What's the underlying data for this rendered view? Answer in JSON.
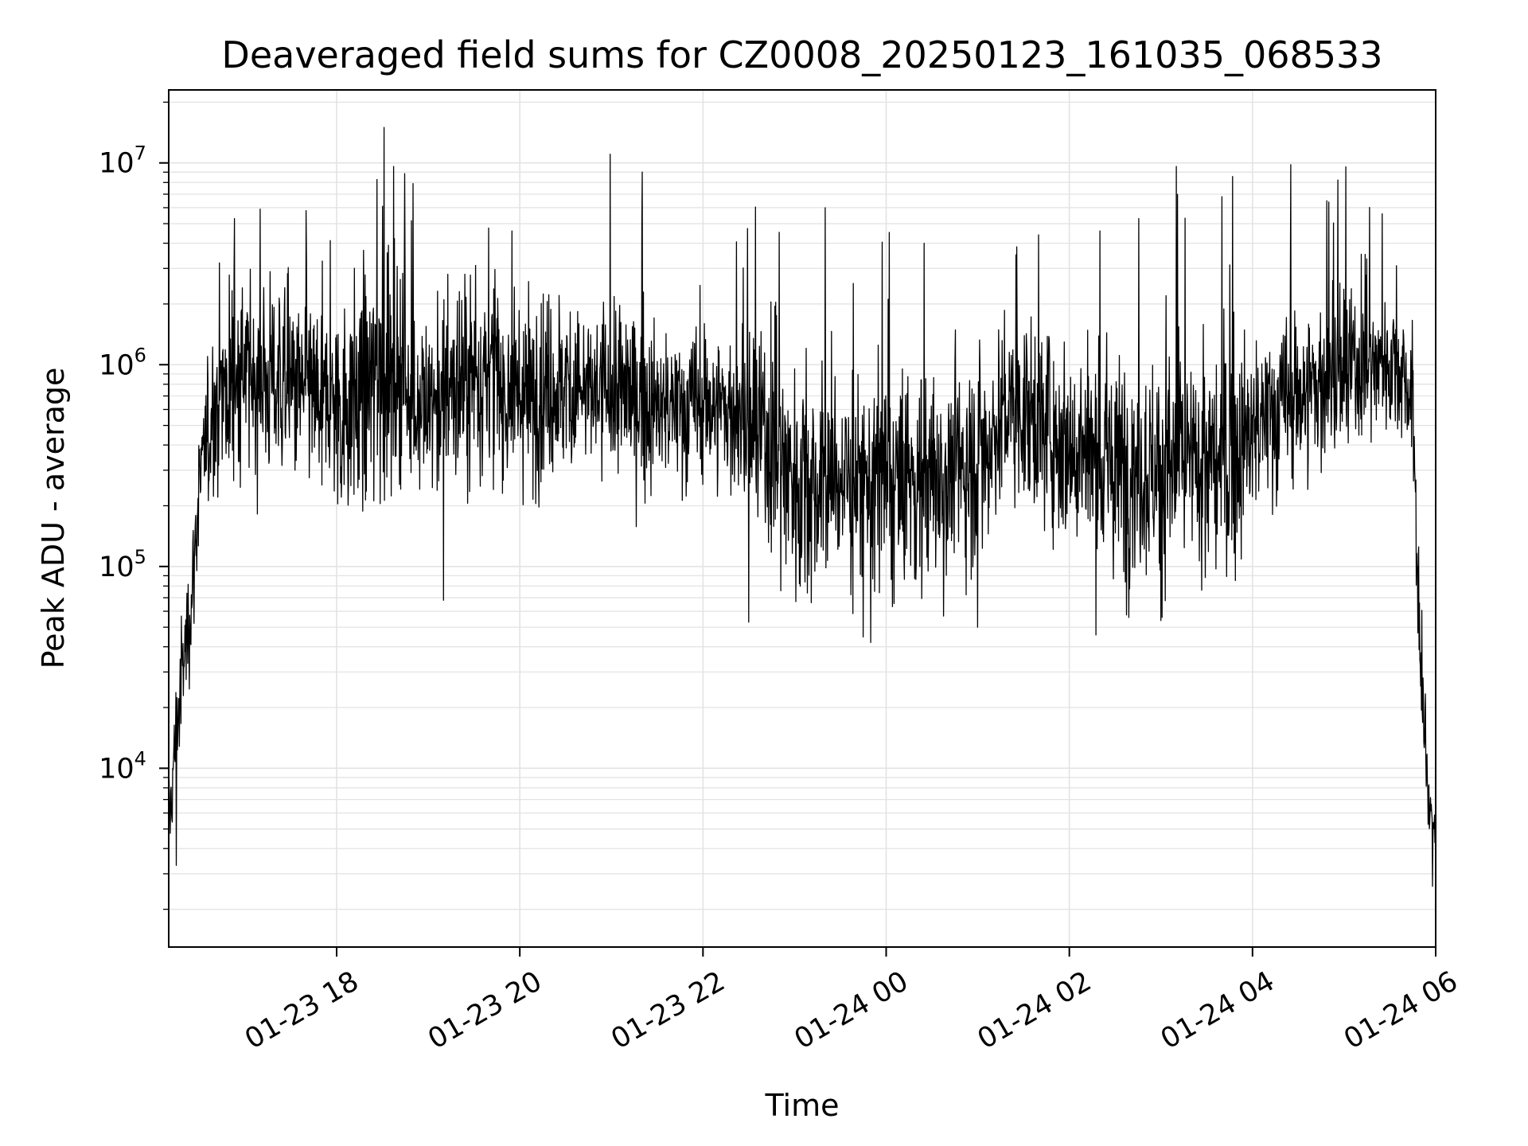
{
  "chart_data": {
    "type": "line",
    "title": "Deaveraged field sums for CZ0008_20250123_161035_068533",
    "xlabel": "Time",
    "ylabel": "Peak ADU - average",
    "yscale": "log",
    "ylim": [
      1300,
      23000000
    ],
    "xlim": [
      "2025-01-23 16:10",
      "2025-01-24 06:00"
    ],
    "grid": true,
    "line_color": "#000000",
    "grid_color": "#e3e3e3",
    "x_ticks": [
      {
        "t": "2025-01-23 18:00",
        "label": "01-23 18"
      },
      {
        "t": "2025-01-23 20:00",
        "label": "01-23 20"
      },
      {
        "t": "2025-01-23 22:00",
        "label": "01-23 22"
      },
      {
        "t": "2025-01-24 00:00",
        "label": "01-24 00"
      },
      {
        "t": "2025-01-24 02:00",
        "label": "01-24 02"
      },
      {
        "t": "2025-01-24 04:00",
        "label": "01-24 04"
      },
      {
        "t": "2025-01-24 06:00",
        "label": "01-24 06"
      }
    ],
    "y_ticks": [
      {
        "value": 10000,
        "base": "10",
        "exp": "4"
      },
      {
        "value": 100000,
        "base": "10",
        "exp": "5"
      },
      {
        "value": 1000000,
        "base": "10",
        "exp": "6"
      },
      {
        "value": 10000000,
        "base": "10",
        "exp": "7"
      }
    ],
    "series": [
      {
        "x": [
          "2025-01-23 16:10",
          "2025-01-23 16:15",
          "2025-01-23 16:20",
          "2025-01-23 16:25",
          "2025-01-23 16:30",
          "2025-01-23 16:40",
          "2025-01-23 16:50",
          "2025-01-23 17:00",
          "2025-01-23 17:15",
          "2025-01-23 17:30",
          "2025-01-23 17:45",
          "2025-01-23 18:00",
          "2025-01-23 18:15",
          "2025-01-23 18:30",
          "2025-01-23 18:45",
          "2025-01-23 19:00",
          "2025-01-23 19:15",
          "2025-01-23 19:30",
          "2025-01-23 19:45",
          "2025-01-23 20:00",
          "2025-01-23 20:15",
          "2025-01-23 20:30",
          "2025-01-23 20:45",
          "2025-01-23 21:00",
          "2025-01-23 21:15",
          "2025-01-23 21:30",
          "2025-01-23 21:45",
          "2025-01-23 22:00",
          "2025-01-23 22:15",
          "2025-01-23 22:30",
          "2025-01-23 22:45",
          "2025-01-23 23:00",
          "2025-01-23 23:15",
          "2025-01-23 23:30",
          "2025-01-23 23:45",
          "2025-01-24 00:00",
          "2025-01-24 00:15",
          "2025-01-24 00:30",
          "2025-01-24 00:45",
          "2025-01-24 01:00",
          "2025-01-24 01:15",
          "2025-01-24 01:30",
          "2025-01-24 01:45",
          "2025-01-24 02:00",
          "2025-01-24 02:15",
          "2025-01-24 02:30",
          "2025-01-24 02:45",
          "2025-01-24 03:00",
          "2025-01-24 03:15",
          "2025-01-24 03:30",
          "2025-01-24 03:45",
          "2025-01-24 04:00",
          "2025-01-24 04:15",
          "2025-01-24 04:30",
          "2025-01-24 04:45",
          "2025-01-24 05:00",
          "2025-01-24 05:15",
          "2025-01-24 05:30",
          "2025-01-24 05:40",
          "2025-01-24 05:45",
          "2025-01-24 05:50",
          "2025-01-24 05:55",
          "2025-01-24 06:00"
        ],
        "center": [
          5000,
          15000,
          35000,
          70000,
          250000,
          600000,
          800000,
          900000,
          850000,
          750000,
          700000,
          600000,
          700000,
          900000,
          800000,
          600000,
          750000,
          900000,
          800000,
          700000,
          750000,
          800000,
          700000,
          750000,
          700000,
          600000,
          600000,
          650000,
          600000,
          500000,
          400000,
          280000,
          250000,
          280000,
          260000,
          250000,
          260000,
          270000,
          300000,
          350000,
          550000,
          600000,
          500000,
          400000,
          350000,
          300000,
          320000,
          300000,
          320000,
          300000,
          350000,
          450000,
          600000,
          700000,
          800000,
          900000,
          1000000,
          1050000,
          900000,
          600000,
          30000,
          8000,
          5000
        ],
        "spread": [
          0.3,
          0.4,
          0.4,
          0.35,
          0.4,
          0.55,
          0.6,
          0.6,
          0.6,
          0.6,
          0.6,
          0.65,
          0.75,
          0.75,
          0.7,
          0.65,
          0.65,
          0.65,
          0.65,
          0.6,
          0.6,
          0.6,
          0.55,
          0.55,
          0.55,
          0.5,
          0.5,
          0.5,
          0.5,
          0.55,
          0.75,
          0.75,
          0.7,
          0.7,
          0.7,
          0.7,
          0.7,
          0.7,
          0.7,
          0.75,
          0.55,
          0.55,
          0.6,
          0.65,
          0.7,
          0.75,
          0.7,
          0.7,
          0.7,
          0.7,
          0.7,
          0.6,
          0.55,
          0.55,
          0.55,
          0.55,
          0.45,
          0.4,
          0.4,
          0.5,
          0.4,
          0.35,
          0.3
        ],
        "peaks": [
          {
            "t": "2025-01-23 16:53",
            "v": 5300000
          },
          {
            "t": "2025-01-23 17:10",
            "v": 5900000
          },
          {
            "t": "2025-01-23 17:40",
            "v": 5800000
          },
          {
            "t": "2025-01-23 18:30",
            "v": 6100000
          },
          {
            "t": "2025-01-23 18:31",
            "v": 15000000
          },
          {
            "t": "2025-01-23 18:50",
            "v": 7900000
          },
          {
            "t": "2025-01-23 19:55",
            "v": 4600000
          },
          {
            "t": "2025-01-23 21:20",
            "v": 4900000
          },
          {
            "t": "2025-01-23 23:20",
            "v": 6000000
          },
          {
            "t": "2025-01-24 00:25",
            "v": 4000000
          },
          {
            "t": "2025-01-24 01:25",
            "v": 3500000
          },
          {
            "t": "2025-01-24 02:20",
            "v": 4600000
          },
          {
            "t": "2025-01-24 03:10",
            "v": 9600000
          },
          {
            "t": "2025-01-24 03:40",
            "v": 6800000
          },
          {
            "t": "2025-01-24 04:25",
            "v": 9800000
          },
          {
            "t": "2025-01-24 04:50",
            "v": 6400000
          },
          {
            "t": "2025-01-24 05:25",
            "v": 5600000
          }
        ],
        "dips": [
          {
            "t": "2025-01-23 16:15",
            "v": 3300
          },
          {
            "t": "2025-01-23 19:10",
            "v": 68000
          },
          {
            "t": "2025-01-23 22:30",
            "v": 53000
          },
          {
            "t": "2025-01-23 23:50",
            "v": 42000
          },
          {
            "t": "2025-01-24 01:00",
            "v": 50000
          },
          {
            "t": "2025-01-24 03:00",
            "v": 54000
          },
          {
            "t": "2025-01-24 05:58",
            "v": 2600
          },
          {
            "t": "2025-01-24 06:00",
            "v": 2000
          }
        ]
      }
    ]
  }
}
